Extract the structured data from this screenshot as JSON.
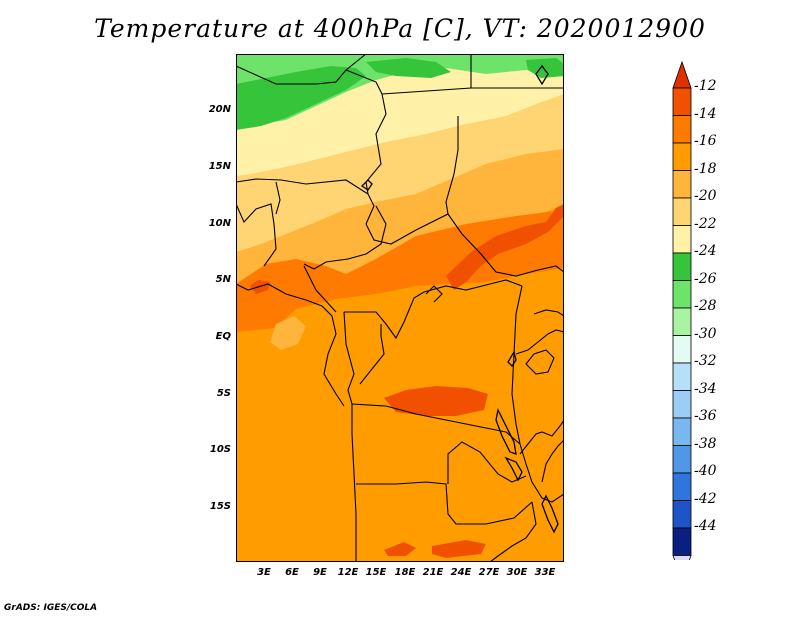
{
  "title": "Temperature at 400hPa [C], VT: 2020012900",
  "credit": "GrADS: IGES/COLA",
  "lat_labels": [
    "20N",
    "15N",
    "10N",
    "5N",
    "EQ",
    "5S",
    "10S",
    "15S"
  ],
  "lon_labels": [
    "3E",
    "6E",
    "9E",
    "12E",
    "15E",
    "18E",
    "21E",
    "24E",
    "27E",
    "30E",
    "33E"
  ],
  "colorbar": {
    "labels": [
      "-12",
      "-14",
      "-16",
      "-18",
      "-20",
      "-22",
      "-24",
      "-26",
      "-28",
      "-30",
      "-32",
      "-34",
      "-36",
      "-38",
      "-40",
      "-42",
      "-44"
    ],
    "colors": [
      "#f05000",
      "#ff7a00",
      "#ff9d00",
      "#ffb43c",
      "#ffd574",
      "#fff1a8",
      "#35c43a",
      "#6ee36a",
      "#a8f4a0",
      "#e4fbf4",
      "#b6e0fa",
      "#9ccdf6",
      "#78b8ef",
      "#4f98e8",
      "#2f76dc",
      "#1d55c8",
      "#0a1f80"
    ],
    "top_arrow_color": "#e03000",
    "bottom_arrow_color": "#dcdcf8"
  },
  "map_colors": {
    "green_dark": "#35c43a",
    "green_light": "#6ee36a",
    "pale_yellow": "#fff1a8",
    "light_yellow": "#ffd574",
    "light_orange": "#ffb43c",
    "orange": "#ff9d00",
    "dark_orange": "#ff7a00",
    "red_orange": "#f05000"
  },
  "chart_data": {
    "type": "heatmap",
    "title": "Temperature at 400hPa [C], VT: 2020012900",
    "region": {
      "lon_range": [
        0,
        35
      ],
      "lat_range": [
        -20,
        24
      ]
    },
    "contour_levels": [
      -44,
      -42,
      -40,
      -38,
      -36,
      -34,
      -32,
      -30,
      -28,
      -26,
      -24,
      -22,
      -20,
      -18,
      -16,
      -14,
      -12
    ]
  }
}
